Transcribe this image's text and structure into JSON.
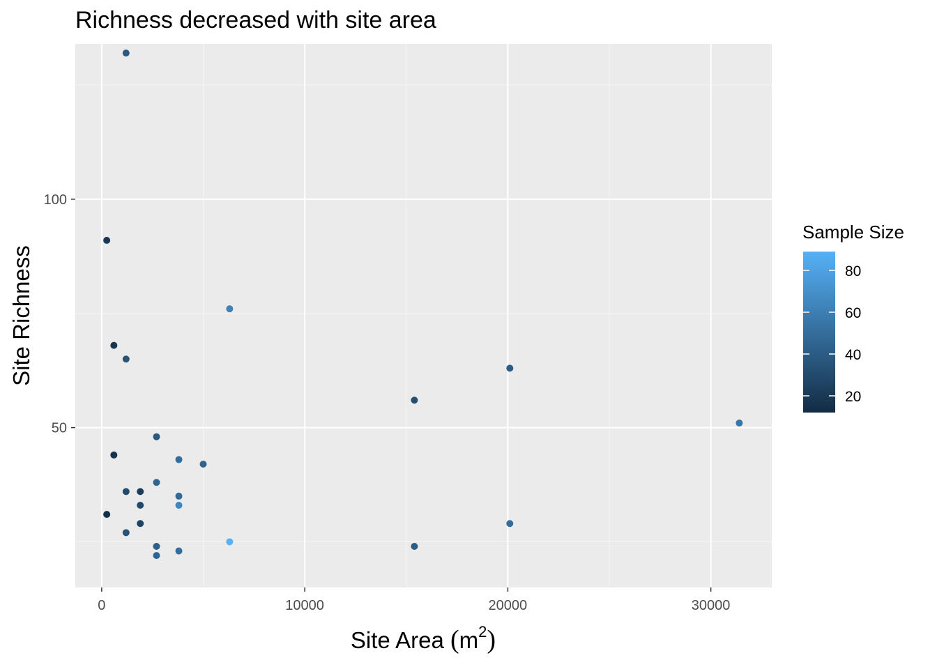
{
  "chart_data": {
    "type": "scatter",
    "title": "Richness decreased with site area",
    "xlabel": "Site Area",
    "xlabel_unit_base": "m",
    "xlabel_unit_exp": "2",
    "ylabel": "Site Richness",
    "xlim": [
      -1300,
      33000
    ],
    "ylim": [
      15,
      134
    ],
    "x_ticks": [
      0,
      10000,
      20000,
      30000
    ],
    "x_tick_labels": [
      "0",
      "10000",
      "20000",
      "30000"
    ],
    "y_ticks": [
      50,
      100
    ],
    "y_tick_labels": [
      "50",
      "100"
    ],
    "grid": true,
    "color_scale": {
      "title": "Sample Size",
      "low": "#132B43",
      "high": "#56B1F7",
      "range": [
        12,
        89
      ],
      "ticks": [
        20,
        40,
        60,
        80
      ],
      "tick_labels": [
        "20",
        "40",
        "60",
        "80"
      ],
      "placement": "right"
    },
    "points": [
      {
        "x": 1200,
        "y": 132,
        "size": 38
      },
      {
        "x": 250,
        "y": 91,
        "size": 20
      },
      {
        "x": 6300,
        "y": 76,
        "size": 62
      },
      {
        "x": 600,
        "y": 68,
        "size": 18
      },
      {
        "x": 1200,
        "y": 65,
        "size": 35
      },
      {
        "x": 20100,
        "y": 63,
        "size": 40
      },
      {
        "x": 15400,
        "y": 56,
        "size": 32
      },
      {
        "x": 31400,
        "y": 51,
        "size": 55
      },
      {
        "x": 2700,
        "y": 48,
        "size": 38
      },
      {
        "x": 600,
        "y": 44,
        "size": 16
      },
      {
        "x": 3800,
        "y": 43,
        "size": 50
      },
      {
        "x": 5000,
        "y": 42,
        "size": 45
      },
      {
        "x": 2700,
        "y": 38,
        "size": 45
      },
      {
        "x": 1200,
        "y": 36,
        "size": 30
      },
      {
        "x": 1900,
        "y": 36,
        "size": 22
      },
      {
        "x": 3800,
        "y": 35,
        "size": 48
      },
      {
        "x": 1900,
        "y": 33,
        "size": 30
      },
      {
        "x": 3800,
        "y": 33,
        "size": 65
      },
      {
        "x": 250,
        "y": 31,
        "size": 15
      },
      {
        "x": 1900,
        "y": 29,
        "size": 25
      },
      {
        "x": 20100,
        "y": 29,
        "size": 50
      },
      {
        "x": 1200,
        "y": 27,
        "size": 35
      },
      {
        "x": 6300,
        "y": 25,
        "size": 89
      },
      {
        "x": 2700,
        "y": 24,
        "size": 42
      },
      {
        "x": 15400,
        "y": 24,
        "size": 40
      },
      {
        "x": 3800,
        "y": 23,
        "size": 50
      },
      {
        "x": 2700,
        "y": 22,
        "size": 45
      }
    ]
  }
}
